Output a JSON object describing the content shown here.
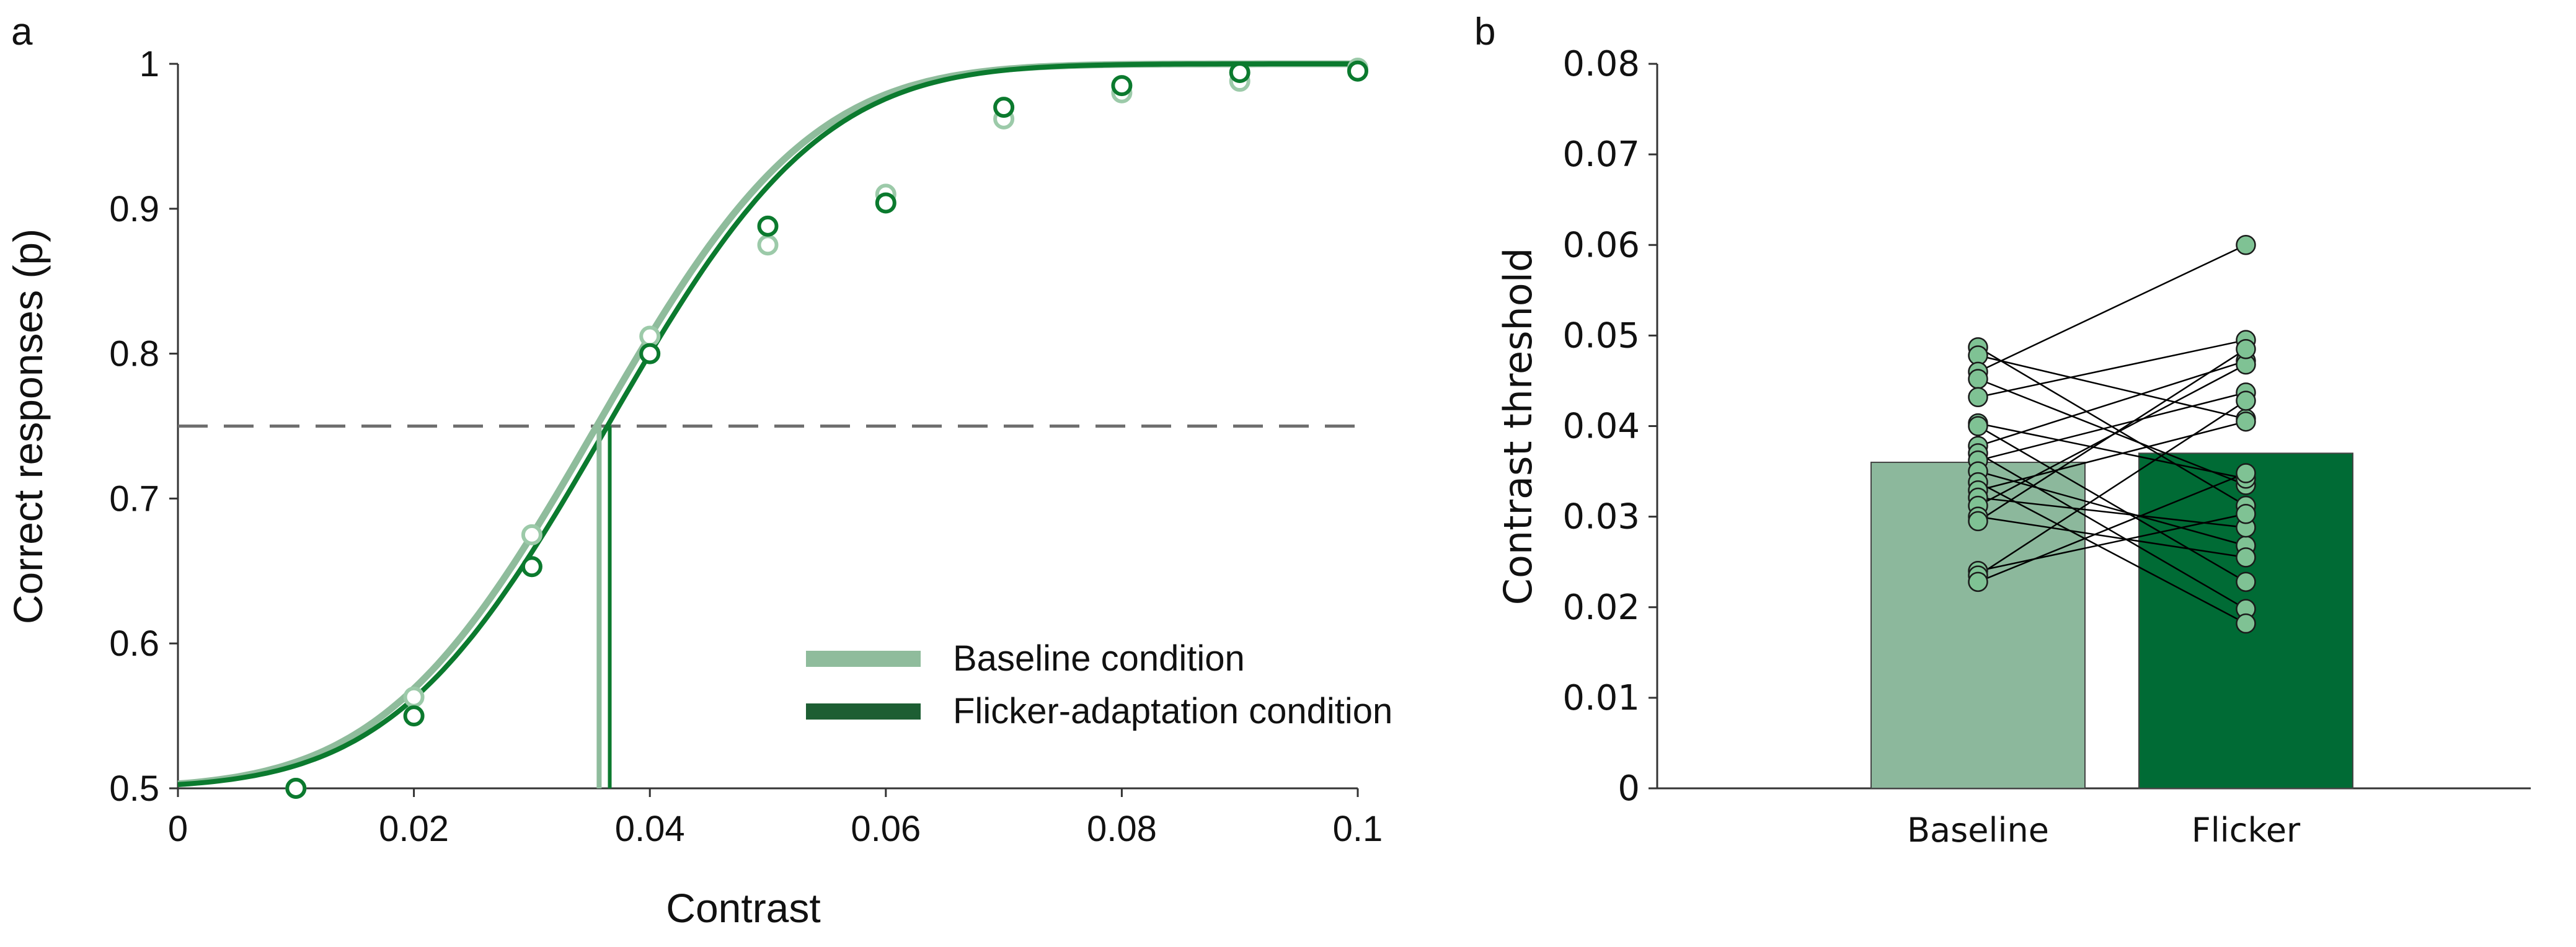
{
  "colors": {
    "baseline_light": "#8fbc9c",
    "baseline_point_stroke": "#9ccaa9",
    "flicker_dark": "#0b7a2e",
    "bar_baseline": "#8cb89c",
    "bar_flicker": "#006b35",
    "dot_fill": "#7fc294",
    "threshold_line": "#6f6f6f"
  },
  "chart_data": [
    {
      "panel": "a",
      "type": "line",
      "xlabel": "Contrast",
      "ylabel": "Correct responses (p)",
      "xlim": [
        0,
        0.1
      ],
      "ylim": [
        0.5,
        1
      ],
      "x_ticks": [
        0,
        0.02,
        0.04,
        0.06,
        0.08,
        0.1
      ],
      "x_tick_labels": [
        "0",
        "0.02",
        "0.04",
        "0.06",
        "0.08",
        "0.1"
      ],
      "y_ticks": [
        0.5,
        0.6,
        0.7,
        0.8,
        0.9,
        1
      ],
      "y_tick_labels": [
        "0.5",
        "0.6",
        "0.7",
        "0.8",
        "0.9",
        "1"
      ],
      "threshold_level": 0.75,
      "legend": [
        "Baseline condition",
        "Flicker-adaptation condition"
      ],
      "legend_position": "bottom-right",
      "x": [
        0.01,
        0.02,
        0.03,
        0.04,
        0.05,
        0.06,
        0.07,
        0.08,
        0.09,
        0.1
      ],
      "series": [
        {
          "name": "Baseline condition",
          "values": [
            0.5,
            0.563,
            0.675,
            0.812,
            0.875,
            0.91,
            0.962,
            0.98,
            0.988,
            0.997
          ],
          "fit": {
            "mu": 0.0355,
            "sigma": 0.0142
          },
          "threshold": 0.0357
        },
        {
          "name": "Flicker-adaptation condition",
          "values": [
            0.5,
            0.55,
            0.653,
            0.8,
            0.888,
            0.904,
            0.97,
            0.985,
            0.994,
            0.995
          ],
          "fit": {
            "mu": 0.0364,
            "sigma": 0.0142
          },
          "threshold": 0.0366
        }
      ]
    },
    {
      "panel": "b",
      "type": "bar",
      "ylabel": "Contrast threshold",
      "ylim": [
        0,
        0.08
      ],
      "y_ticks": [
        0,
        0.01,
        0.02,
        0.03,
        0.04,
        0.05,
        0.06,
        0.07,
        0.08
      ],
      "y_tick_labels": [
        "0",
        "0.01",
        "0.02",
        "0.03",
        "0.04",
        "0.05",
        "0.06",
        "0.07",
        "0.08"
      ],
      "categories": [
        "Baseline",
        "Flicker"
      ],
      "values": [
        0.036,
        0.037
      ],
      "paired_points": {
        "baseline": [
          0.0487,
          0.0478,
          0.046,
          0.0452,
          0.0432,
          0.0403,
          0.04,
          0.0378,
          0.037,
          0.0362,
          0.035,
          0.0338,
          0.0329,
          0.0321,
          0.0312,
          0.03,
          0.0295,
          0.024,
          0.0235,
          0.0228
        ],
        "flicker": [
          0.0312,
          0.0408,
          0.06,
          0.0335,
          0.0495,
          0.0342,
          0.0228,
          0.0472,
          0.0198,
          0.0437,
          0.0268,
          0.0182,
          0.0405,
          0.0288,
          0.0468,
          0.0255,
          0.0485,
          0.0303,
          0.0428,
          0.0348
        ]
      }
    }
  ]
}
